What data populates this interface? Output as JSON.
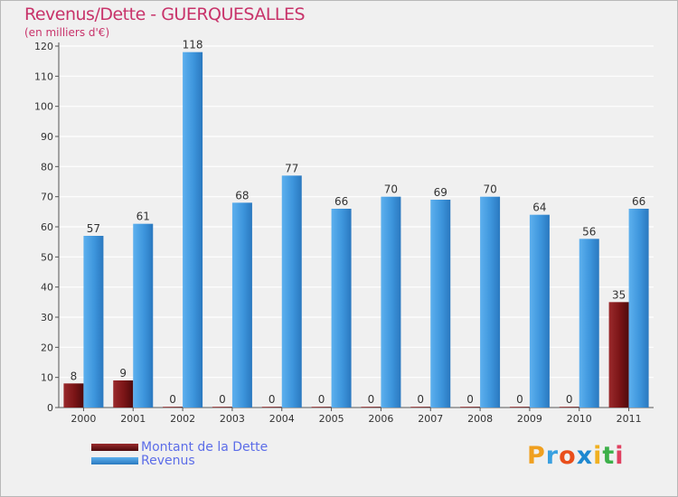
{
  "chart_data": {
    "type": "bar",
    "title": "Revenus/Dette - GUERQUESALLES",
    "subtitle": "(en milliers d'€)",
    "categories": [
      "2000",
      "2001",
      "2002",
      "2003",
      "2004",
      "2005",
      "2006",
      "2007",
      "2008",
      "2009",
      "2010",
      "2011"
    ],
    "series": [
      {
        "name": "Montant de la Dette",
        "color": "#7a1416",
        "values": [
          8,
          9,
          0,
          0,
          0,
          0,
          0,
          0,
          0,
          0,
          0,
          35
        ]
      },
      {
        "name": "Revenus",
        "color": "#3d95dc",
        "values": [
          57,
          61,
          118,
          68,
          77,
          66,
          70,
          69,
          70,
          64,
          56,
          66
        ]
      }
    ],
    "ylim": [
      0,
      120
    ],
    "yticks": [
      0,
      10,
      20,
      30,
      40,
      50,
      60,
      70,
      80,
      90,
      100,
      110,
      120
    ],
    "grid": true,
    "legend": "bottom-left"
  },
  "branding": {
    "logo_letters": [
      "P",
      "r",
      "o",
      "x",
      "i",
      "t",
      "i"
    ],
    "logo_colors": [
      "#f0a020",
      "#3aa0e0",
      "#e94e1b",
      "#1e88d0",
      "#f0b020",
      "#3db04a",
      "#e04060"
    ]
  }
}
